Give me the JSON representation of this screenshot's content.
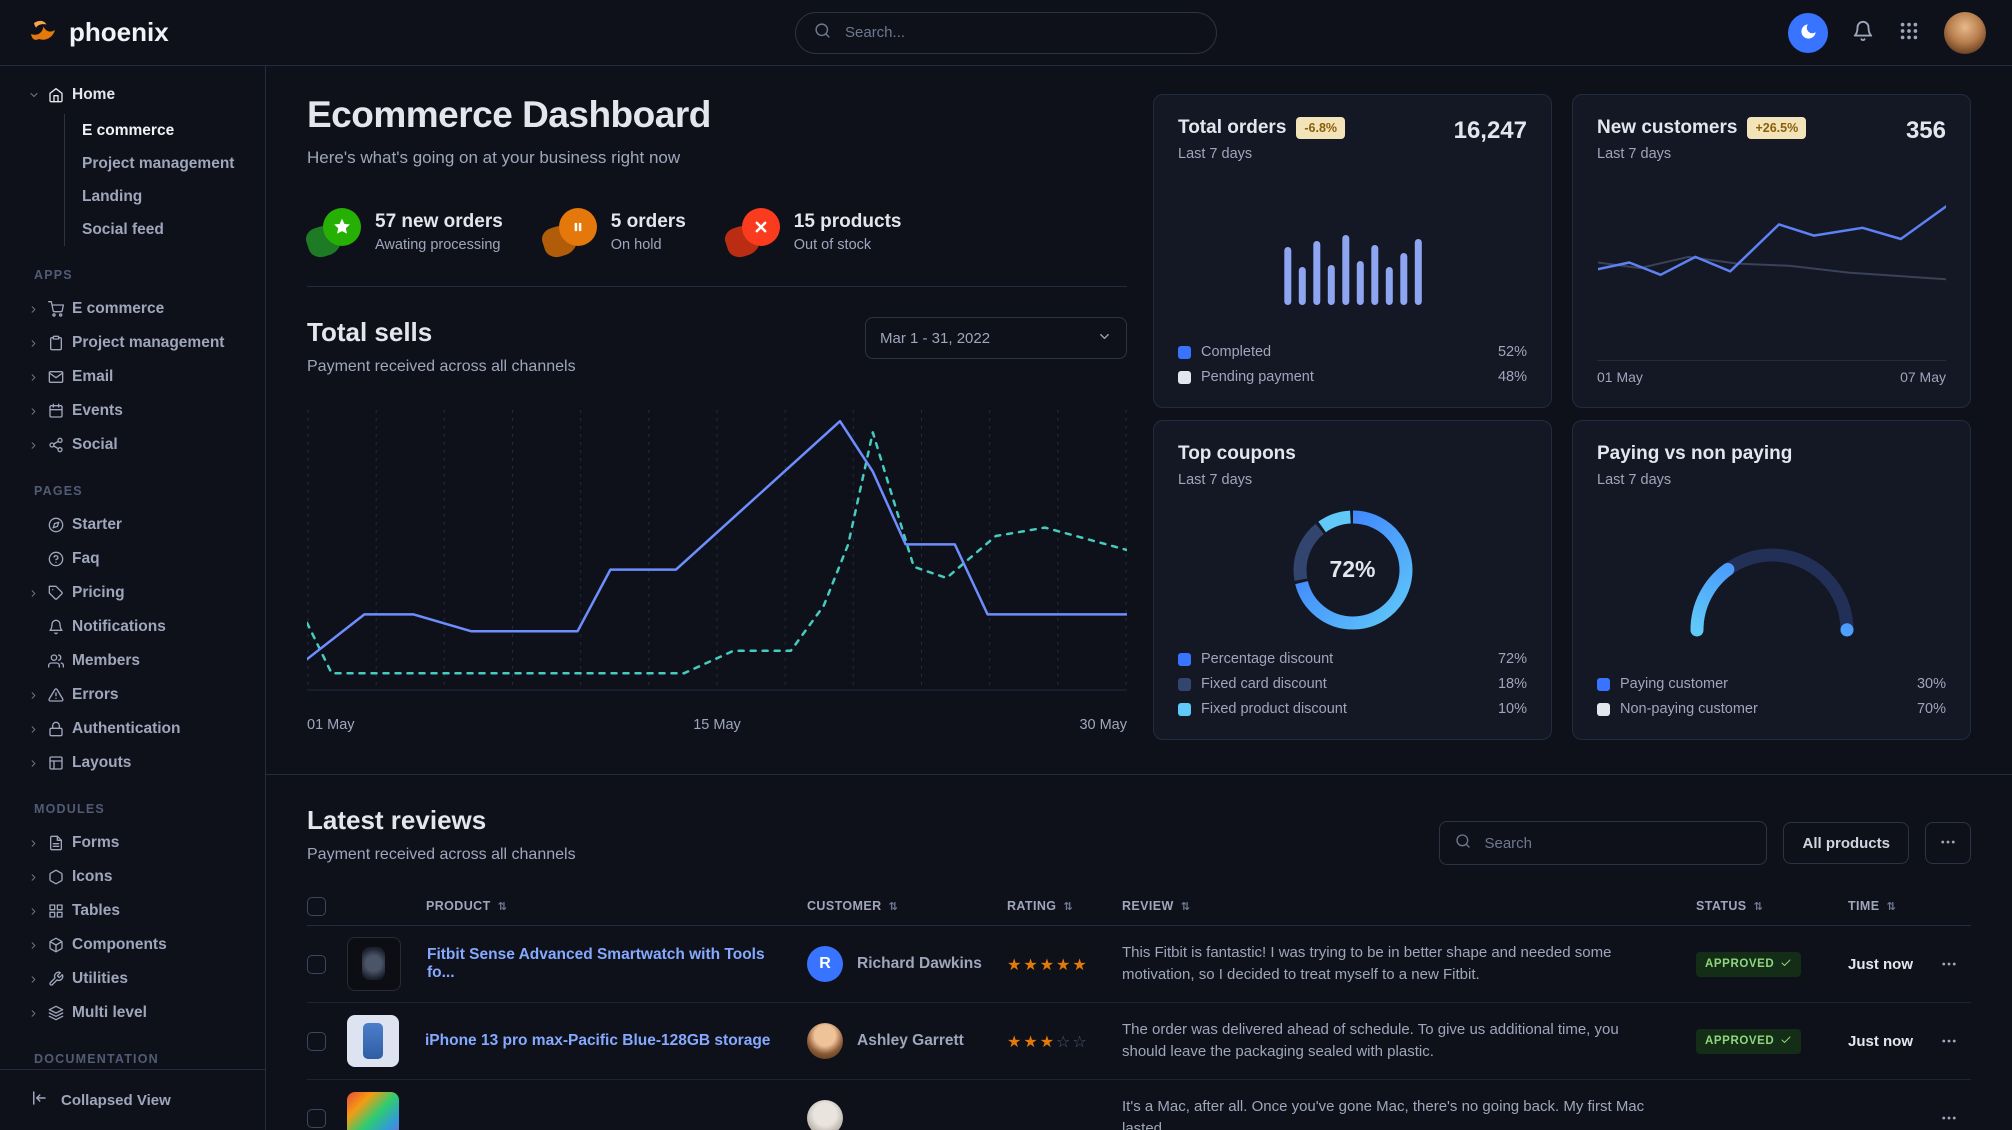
{
  "theme": {
    "accent": "#3874ff",
    "bg": "#0f111a",
    "card_bg": "#141824",
    "border": "#31374a",
    "text_primary": "#e3e6ed",
    "text_secondary": "#9fa6bc",
    "success": "#90d67f",
    "star": "#e5780b"
  },
  "navbar": {
    "brand": "phoenix",
    "search_placeholder": "Search..."
  },
  "sidebar": {
    "collapse_label": "Collapsed View",
    "sections": [
      {
        "label": "",
        "items": [
          {
            "label": "Home",
            "icon": "home",
            "caret": "down",
            "bright": true,
            "children": [
              {
                "label": "E commerce",
                "active": true
              },
              {
                "label": "Project management"
              },
              {
                "label": "Landing"
              },
              {
                "label": "Social feed"
              }
            ]
          }
        ]
      },
      {
        "label": "APPS",
        "items": [
          {
            "label": "E commerce",
            "icon": "cart",
            "caret": "right"
          },
          {
            "label": "Project management",
            "icon": "clipboard",
            "caret": "right"
          },
          {
            "label": "Email",
            "icon": "mail",
            "caret": "right"
          },
          {
            "label": "Events",
            "icon": "calendar",
            "caret": "right"
          },
          {
            "label": "Social",
            "icon": "share",
            "caret": "right"
          }
        ]
      },
      {
        "label": "PAGES",
        "items": [
          {
            "label": "Starter",
            "icon": "compass"
          },
          {
            "label": "Faq",
            "icon": "help"
          },
          {
            "label": "Pricing",
            "icon": "tag",
            "caret": "right"
          },
          {
            "label": "Notifications",
            "icon": "bell"
          },
          {
            "label": "Members",
            "icon": "users"
          },
          {
            "label": "Errors",
            "icon": "alert",
            "caret": "right"
          },
          {
            "label": "Authentication",
            "icon": "lock",
            "caret": "right"
          },
          {
            "label": "Layouts",
            "icon": "layout",
            "caret": "right"
          }
        ]
      },
      {
        "label": "MODULES",
        "items": [
          {
            "label": "Forms",
            "icon": "file",
            "caret": "right"
          },
          {
            "label": "Icons",
            "icon": "box",
            "caret": "right"
          },
          {
            "label": "Tables",
            "icon": "table",
            "caret": "right"
          },
          {
            "label": "Components",
            "icon": "package",
            "caret": "right"
          },
          {
            "label": "Utilities",
            "icon": "tool",
            "caret": "right"
          },
          {
            "label": "Multi level",
            "icon": "layers",
            "caret": "right"
          }
        ]
      },
      {
        "label": "DOCUMENTATION",
        "items": []
      }
    ]
  },
  "page": {
    "title": "Ecommerce Dashboard",
    "subtitle": "Here's what's going on at your business right now"
  },
  "stats": [
    {
      "icon": "star",
      "color": "#25b003",
      "blob": "#1e7b25",
      "title": "57 new orders",
      "subtitle": "Awating processing"
    },
    {
      "icon": "pause",
      "color": "#e5780b",
      "blob": "#b05c08",
      "title": "5 orders",
      "subtitle": "On hold"
    },
    {
      "icon": "x",
      "color": "#fa3b1d",
      "blob": "#bb2d12",
      "title": "15 products",
      "subtitle": "Out of stock"
    }
  ],
  "total_sells": {
    "title": "Total sells",
    "subtitle": "Payment received across all channels",
    "date_range": "Mar 1 - 31, 2022",
    "chart": {
      "type": "line",
      "grid_lines": 13,
      "x_labels": [
        "01 May",
        "15 May",
        "30 May"
      ],
      "series": [
        {
          "name": "current",
          "style": "solid",
          "color": "#6e8eff",
          "points": [
            [
              0,
              11
            ],
            [
              7,
              27
            ],
            [
              13,
              27
            ],
            [
              20,
              21
            ],
            [
              33,
              21
            ],
            [
              37,
              43
            ],
            [
              45,
              43
            ],
            [
              65,
              96
            ],
            [
              69,
              78
            ],
            [
              73,
              52
            ],
            [
              79,
              52
            ],
            [
              83,
              27
            ],
            [
              100,
              27
            ]
          ]
        },
        {
          "name": "previous",
          "style": "dashed",
          "color": "#45cbbf",
          "points": [
            [
              0,
              24
            ],
            [
              3,
              6
            ],
            [
              46,
              6
            ],
            [
              52,
              14
            ],
            [
              59,
              14
            ],
            [
              63,
              30
            ],
            [
              66,
              52
            ],
            [
              69,
              92
            ],
            [
              74,
              44
            ],
            [
              78,
              40
            ],
            [
              84,
              55
            ],
            [
              90,
              58
            ],
            [
              100,
              50
            ]
          ]
        }
      ]
    }
  },
  "cards": {
    "total_orders": {
      "title": "Total orders",
      "badge": "-6.8%",
      "period": "Last 7 days",
      "value": "16,247",
      "chart": {
        "type": "bar",
        "color": "#8ea5f2",
        "values": [
          58,
          38,
          64,
          40,
          70,
          44,
          60,
          38,
          52,
          66
        ]
      },
      "legend": [
        {
          "label": "Completed",
          "value": "52%",
          "color": "#3874ff"
        },
        {
          "label": "Pending payment",
          "value": "48%",
          "color": "#e3e6ed"
        }
      ]
    },
    "new_customers": {
      "title": "New customers",
      "badge": "+26.5%",
      "period": "Last 7 days",
      "value": "356",
      "x_labels": [
        "01 May",
        "07 May"
      ],
      "chart": {
        "type": "line",
        "series": [
          {
            "name": "customers",
            "style": "solid",
            "color": "#5e81f4",
            "width": 2.5,
            "points": [
              [
                0,
                40
              ],
              [
                9,
                46
              ],
              [
                18,
                35
              ],
              [
                28,
                51
              ],
              [
                38,
                38
              ],
              [
                52,
                80
              ],
              [
                62,
                70
              ],
              [
                76,
                77
              ],
              [
                87,
                67
              ],
              [
                100,
                96
              ]
            ]
          },
          {
            "name": "previous",
            "style": "solid",
            "color": "#3a4257",
            "width": 2,
            "points": [
              [
                0,
                46
              ],
              [
                12,
                41
              ],
              [
                26,
                51
              ],
              [
                40,
                45
              ],
              [
                55,
                43
              ],
              [
                72,
                37
              ],
              [
                100,
                31
              ]
            ]
          }
        ]
      }
    },
    "top_coupons": {
      "title": "Top coupons",
      "period": "Last 7 days",
      "value_label": "72%",
      "chart": {
        "type": "pie",
        "segments": [
          {
            "label": "Percentage discount",
            "value": 72,
            "color": "#3874ff"
          },
          {
            "label": "Fixed card discount",
            "value": 18,
            "color": "#31456e"
          },
          {
            "label": "Fixed product discount",
            "value": 10,
            "color": "#60c9f8"
          }
        ]
      }
    },
    "paying": {
      "title": "Paying vs non paying",
      "period": "Last 7 days",
      "chart": {
        "type": "gauge",
        "value": 30
      },
      "legend": [
        {
          "label": "Paying customer",
          "value": "30%",
          "color": "#3874ff"
        },
        {
          "label": "Non-paying customer",
          "value": "70%",
          "color": "#e3e6ed"
        }
      ]
    }
  },
  "reviews": {
    "title": "Latest reviews",
    "subtitle": "Payment received across all channels",
    "search_placeholder": "Search",
    "filter_label": "All products",
    "columns": [
      "PRODUCT",
      "CUSTOMER",
      "RATING",
      "REVIEW",
      "STATUS",
      "TIME"
    ],
    "rows": [
      {
        "product": "Fitbit Sense Advanced Smartwatch with Tools fo...",
        "thumb": "watch",
        "customer": "Richard Dawkins",
        "avatar": {
          "kind": "initial",
          "text": "R"
        },
        "rating": 5,
        "review": "This Fitbit is fantastic! I was trying to be in better shape and needed some motivation, so I decided to treat myself to a new Fitbit.",
        "status": "APPROVED",
        "time": "Just now"
      },
      {
        "product": "iPhone 13 pro max-Pacific Blue-128GB storage",
        "thumb": "iphone",
        "customer": "Ashley Garrett",
        "avatar": {
          "kind": "photo",
          "tone": "ashley"
        },
        "rating": 3,
        "review": "The order was delivered ahead of schedule. To give us additional time, you should leave the packaging sealed with plastic.",
        "status": "APPROVED",
        "time": "Just now"
      },
      {
        "product": "",
        "thumb": "mac",
        "customer": "",
        "avatar": {
          "kind": "photo",
          "tone": "gray"
        },
        "rating": null,
        "review": "It's a Mac, after all. Once you've gone Mac, there's no going back. My first Mac lasted...",
        "status": "",
        "time": ""
      }
    ]
  }
}
